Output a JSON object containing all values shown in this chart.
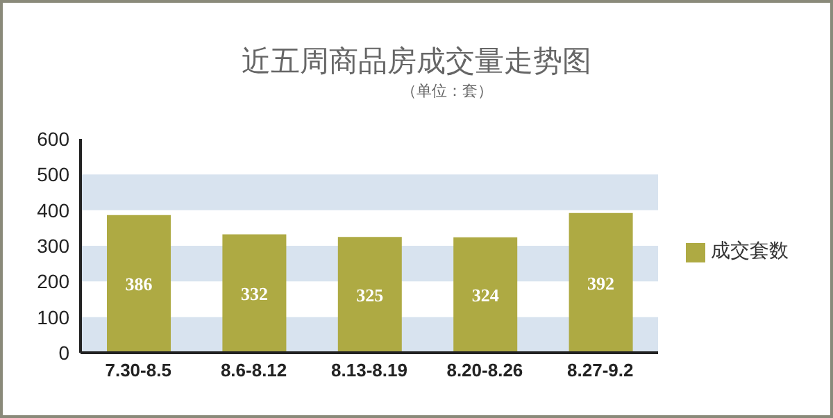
{
  "chart_data": {
    "type": "bar",
    "title": "近五周商品房成交量走势图",
    "subtitle": "（单位：套）",
    "categories": [
      "7.30-8.5",
      "8.6-8.12",
      "8.13-8.19",
      "8.20-8.26",
      "8.27-9.2"
    ],
    "series": [
      {
        "name": "成交套数",
        "color": "#aeaa43",
        "values": [
          386,
          332,
          325,
          324,
          392
        ]
      }
    ],
    "ylim": [
      0,
      600
    ],
    "yticks": [
      0,
      100,
      200,
      300,
      400,
      500,
      600
    ],
    "data_labels": true,
    "legend": "right",
    "grid": false,
    "bands": [
      {
        "axis": "y",
        "from": 0,
        "to": 100,
        "color": "#d8e3ef"
      },
      {
        "axis": "y",
        "from": 200,
        "to": 300,
        "color": "#d8e3ef"
      },
      {
        "axis": "y",
        "from": 400,
        "to": 500,
        "color": "#d8e3ef"
      }
    ]
  }
}
